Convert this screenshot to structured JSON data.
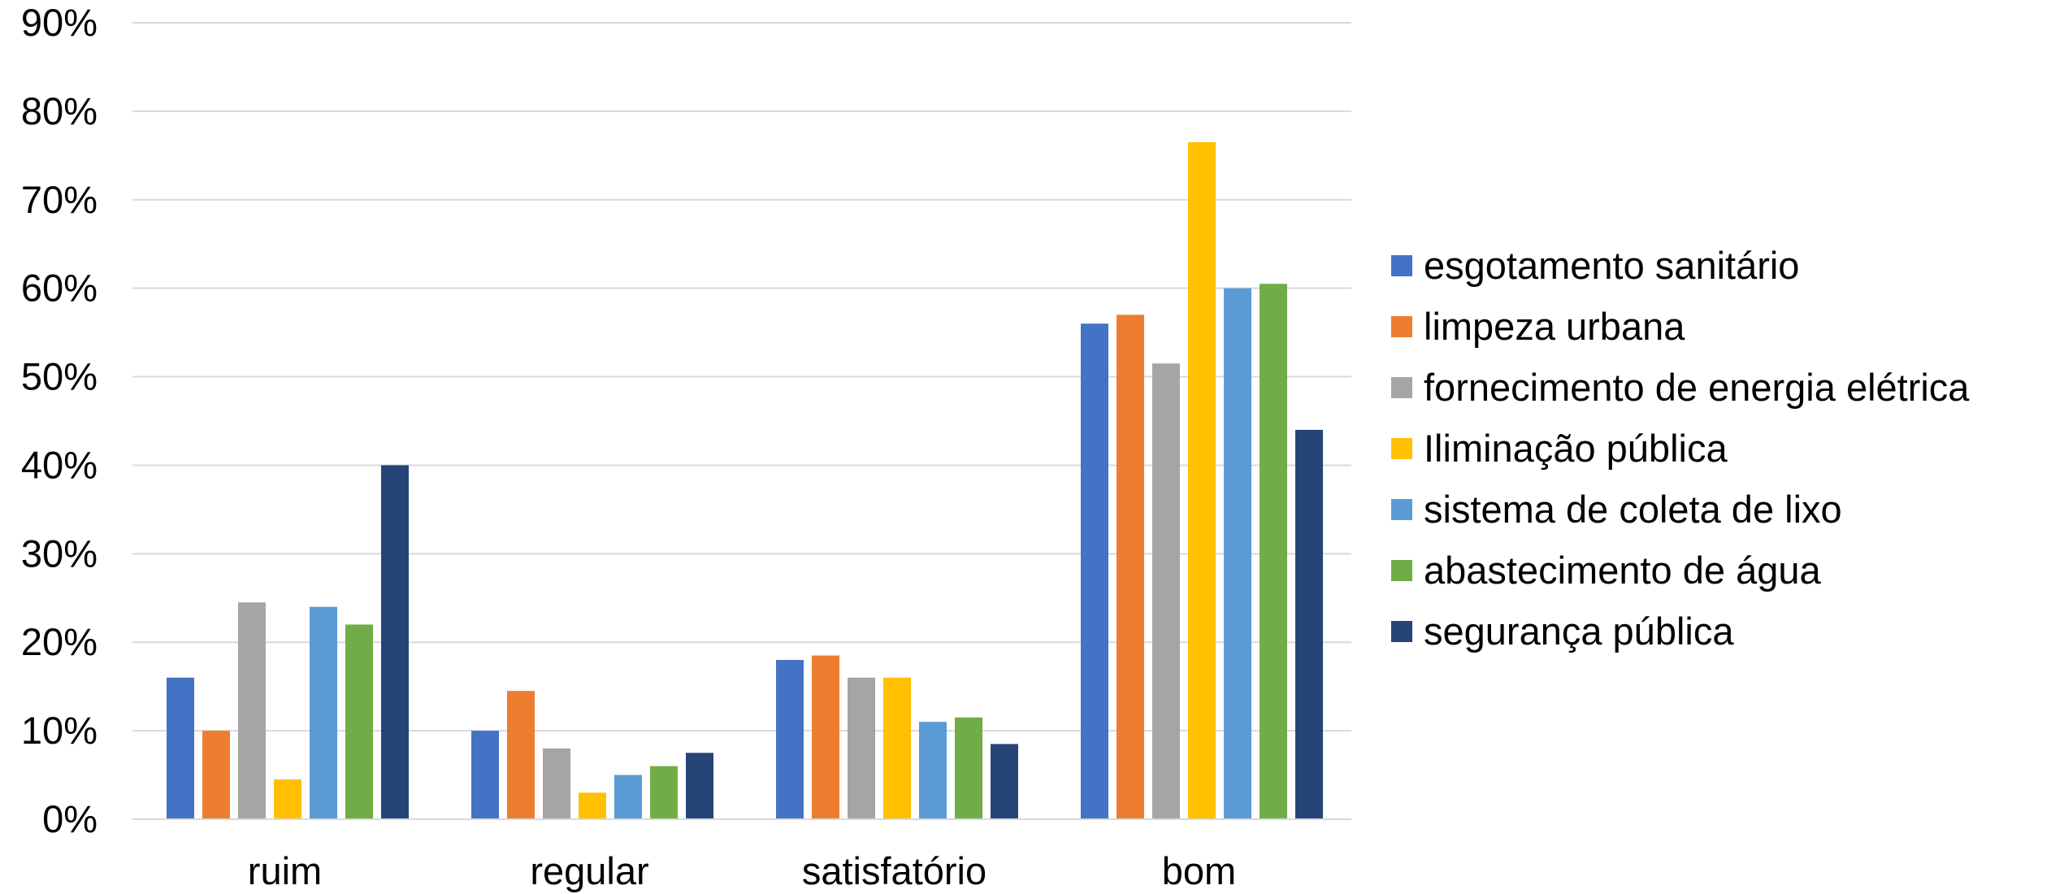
{
  "chart_data": {
    "type": "bar",
    "title": "",
    "xlabel": "",
    "ylabel": "",
    "categories": [
      "ruim",
      "regular",
      "satisfatório",
      "bom"
    ],
    "ylim": [
      0,
      90
    ],
    "y_ticks": [
      "0%",
      "10%",
      "20%",
      "30%",
      "40%",
      "50%",
      "60%",
      "70%",
      "80%",
      "90%"
    ],
    "y_unit": "%",
    "grid": true,
    "legend_position": "right",
    "series": [
      {
        "name": "esgotamento sanitário",
        "color": "#4472C4",
        "values": [
          16,
          10,
          18,
          56
        ]
      },
      {
        "name": "limpeza urbana",
        "color": "#ED7D31",
        "values": [
          10,
          14.5,
          18.5,
          57
        ]
      },
      {
        "name": "fornecimento de energia elétrica",
        "color": "#A5A5A5",
        "values": [
          24.5,
          8,
          16,
          51.5
        ]
      },
      {
        "name": "Iliminação pública",
        "color": "#FFC000",
        "values": [
          4.5,
          3,
          16,
          76.5
        ]
      },
      {
        "name": "sistema de coleta de lixo",
        "color": "#5B9BD5",
        "values": [
          24,
          5,
          11,
          60
        ]
      },
      {
        "name": "abastecimento de água",
        "color": "#70AD47",
        "values": [
          22,
          6,
          11.5,
          60.5
        ]
      },
      {
        "name": "segurança pública",
        "color": "#264478",
        "values": [
          40,
          7.5,
          8.5,
          44
        ]
      }
    ]
  }
}
